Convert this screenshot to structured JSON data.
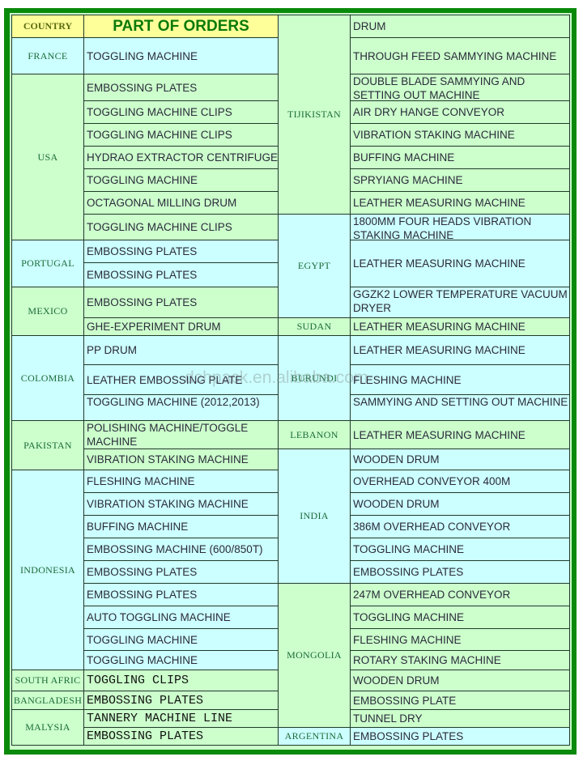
{
  "header": {
    "country_label": "COUNTRY",
    "title": "PART OF ORDERS",
    "header_color": "#ffff99",
    "title_color": "#008000"
  },
  "colors": {
    "green": "#ccffcc",
    "cyan": "#ccffff",
    "border": "#0a8a0a"
  },
  "left": [
    {
      "country": "FRANCE",
      "color": "cyan",
      "items": [
        "TOGGLING MACHINE"
      ]
    },
    {
      "country": "USA",
      "color": "green",
      "items": [
        "EMBOSSING PLATES",
        "TOGGLING MACHINE CLIPS",
        "TOGGLING MACHINE CLIPS",
        "HYDRAO EXTRACTOR CENTRIFUGE",
        "TOGGLING MACHINE",
        "OCTAGONAL MILLING DRUM",
        "TOGGLING MACHINE CLIPS"
      ]
    },
    {
      "country": "PORTUGAL",
      "color": "cyan",
      "items": [
        "EMBOSSING PLATES",
        "EMBOSSING PLATES"
      ]
    },
    {
      "country": "MEXICO",
      "color": "green",
      "items": [
        "EMBOSSING PLATES",
        "GHE-EXPERIMENT DRUM"
      ]
    },
    {
      "country": "COLOMBIA",
      "color": "cyan",
      "items": [
        "PP DRUM",
        "LEATHER EMBOSSING PLATE",
        "TOGGLING MACHINE  (2012,2013)"
      ]
    },
    {
      "country": "PAKISTAN",
      "color": "green",
      "items": [
        "POLISHING MACHINE/TOGGLE MACHINE",
        "VIBRATION STAKING MACHINE"
      ]
    },
    {
      "country": "INDONESIA",
      "color": "cyan",
      "items": [
        "FLESHING MACHINE",
        "VIBRATION STAKING MACHINE",
        "BUFFING MACHINE",
        "EMBOSSING MACHINE (600/850T)",
        "EMBOSSING PLATES",
        "EMBOSSING PLATES",
        "AUTO TOGGLING MACHINE",
        "TOGGLING MACHINE",
        "TOGGLING MACHINE"
      ]
    },
    {
      "country": "SOUTH AFRIC",
      "color": "green",
      "items": [
        "TOGGLING CLIPS"
      ]
    },
    {
      "country": "BANGLADESH",
      "color": "green",
      "items": [
        "EMBOSSING PLATES"
      ]
    },
    {
      "country": "MALYSIA",
      "color": "green",
      "items": [
        "TANNERY MACHINE LINE",
        "EMBOSSING PLATES"
      ]
    }
  ],
  "right": [
    {
      "country": "TIJIKISTAN",
      "color": "green",
      "items": [
        "DRUM",
        "THROUGH FEED SAMMYING MACHINE",
        "DOUBLE BLADE SAMMYING AND SETTING OUT MACHINE",
        "AIR DRY HANGE CONVEYOR",
        "VIBRATION STAKING MACHINE",
        "BUFFING MACHINE",
        "SPRYIANG MACHINE",
        "LEATHER MEASURING MACHINE"
      ]
    },
    {
      "country": "EGYPT",
      "color": "cyan",
      "items": [
        "1800MM FOUR HEADS VIBRATION STAKING MACHINE",
        "LEATHER MEASURING MACHINE",
        "GGZK2 LOWER TEMPERATURE VACUUM DRYER"
      ]
    },
    {
      "country": "SUDAN",
      "color": "green",
      "items": [
        "LEATHER MEASURING MACHINE"
      ]
    },
    {
      "country": "BURUNDI",
      "color": "cyan",
      "items": [
        "LEATHER MEASURING MACHINE",
        "FLESHING MACHINE",
        "SAMMYING AND SETTING OUT MACHINE"
      ]
    },
    {
      "country": "LEBANON",
      "color": "green",
      "items": [
        "LEATHER MEASURING MACHINE"
      ]
    },
    {
      "country": "INDIA",
      "color": "cyan",
      "items": [
        "WOODEN DRUM",
        "OVERHEAD CONVEYOR 400M",
        "WOODEN DRUM",
        "386M OVERHEAD CONVEYOR",
        "TOGGLING MACHINE",
        " EMBOSSING PLATES"
      ]
    },
    {
      "country": "MONGOLIA",
      "color": "green",
      "items": [
        "247M OVERHEAD CONVEYOR",
        "TOGGLING MACHINE",
        "FLESHING MACHINE",
        "ROTARY STAKING MACHINE",
        "WOODEN DRUM",
        "EMBOSSING PLATE",
        "TUNNEL DRY"
      ]
    },
    {
      "country": "ARGENTINA",
      "color": "cyan",
      "items": [
        "EMBOSSING PLATES"
      ]
    }
  ],
  "watermark": "dchpack.en.alibaba.com"
}
